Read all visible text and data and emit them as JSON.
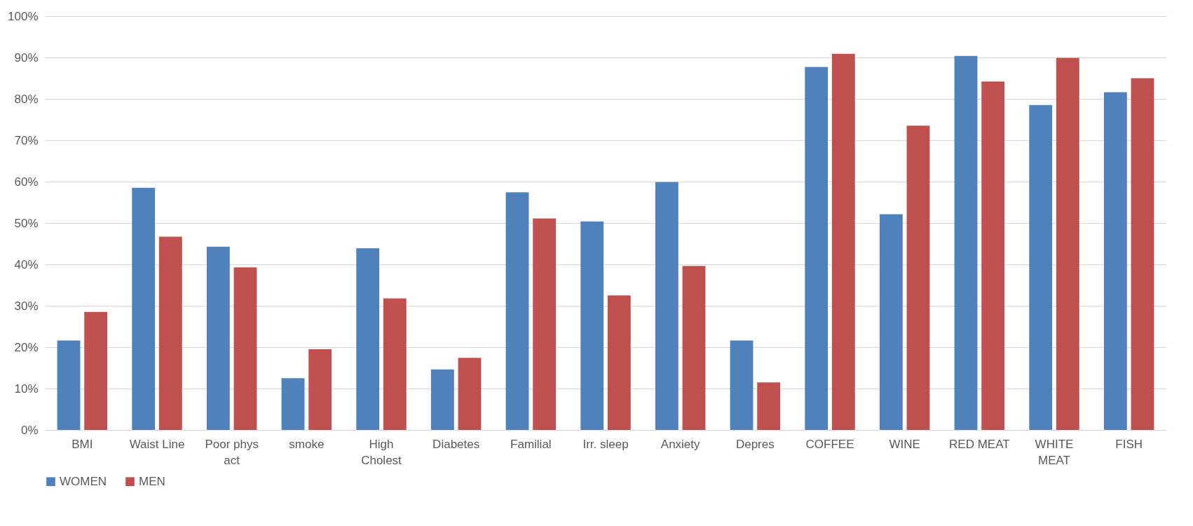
{
  "chart_data": {
    "type": "bar",
    "categories": [
      "BMI",
      "Waist Line",
      "Poor phys act",
      "smoke",
      "High Cholest",
      "Diabetes",
      "Familial",
      "Irr. sleep",
      "Anxiety",
      "Depres",
      "COFFEE",
      "WINE",
      "RED MEAT",
      "WHITE MEAT",
      "FISH"
    ],
    "series": [
      {
        "name": "WOMEN",
        "color": "#4f81bd",
        "values": [
          21.6,
          58.5,
          44.3,
          12.5,
          43.9,
          14.6,
          57.4,
          50.4,
          59.9,
          21.6,
          87.7,
          52.1,
          90.4,
          78.5,
          81.6
        ]
      },
      {
        "name": "MEN",
        "color": "#c0504d",
        "values": [
          28.5,
          46.7,
          39.3,
          19.5,
          31.8,
          17.4,
          51.1,
          32.5,
          39.6,
          11.5,
          90.9,
          73.5,
          84.2,
          89.9,
          85.0
        ]
      }
    ],
    "ylim": [
      0,
      100
    ],
    "yticks": [
      {
        "value": 0,
        "label": "0%"
      },
      {
        "value": 10,
        "label": "10%"
      },
      {
        "value": 20,
        "label": "20%"
      },
      {
        "value": 30,
        "label": "30%"
      },
      {
        "value": 40,
        "label": "40%"
      },
      {
        "value": 50,
        "label": "50%"
      },
      {
        "value": 60,
        "label": "60%"
      },
      {
        "value": 70,
        "label": "70%"
      },
      {
        "value": 80,
        "label": "80%"
      },
      {
        "value": 90,
        "label": "90%"
      },
      {
        "value": 100,
        "label": "100%"
      }
    ],
    "grid": "y",
    "legend": "bottom"
  }
}
